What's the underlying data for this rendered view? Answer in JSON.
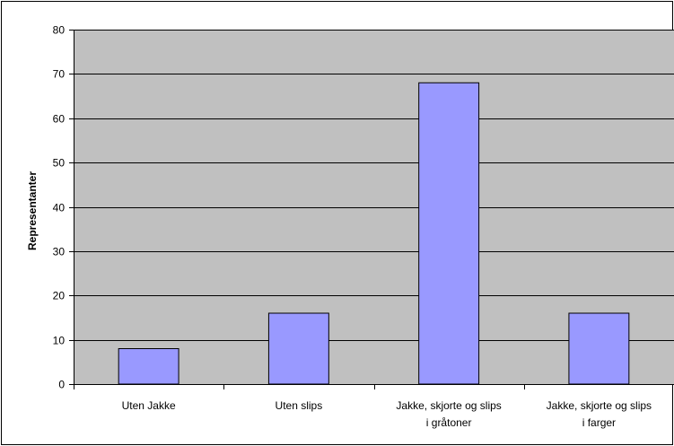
{
  "chart_data": {
    "type": "bar",
    "title": "",
    "xlabel": "",
    "ylabel": "Representanter",
    "ylim": [
      0,
      80
    ],
    "yticks": [
      0,
      10,
      20,
      30,
      40,
      50,
      60,
      70,
      80
    ],
    "grid": true,
    "legend": "none",
    "categories": [
      [
        "Uten Jakke"
      ],
      [
        "Uten slips"
      ],
      [
        "Jakke, skjorte og slips",
        "i gråtoner"
      ],
      [
        "Jakke, skjorte og slips",
        "i farger"
      ]
    ],
    "values": [
      8,
      16,
      68,
      16
    ],
    "colors": {
      "bar_fill": "#9999ff",
      "bar_stroke": "#000000",
      "plot_background": "#c0c0c0",
      "gridline": "#000000",
      "frame": "#000000"
    }
  }
}
